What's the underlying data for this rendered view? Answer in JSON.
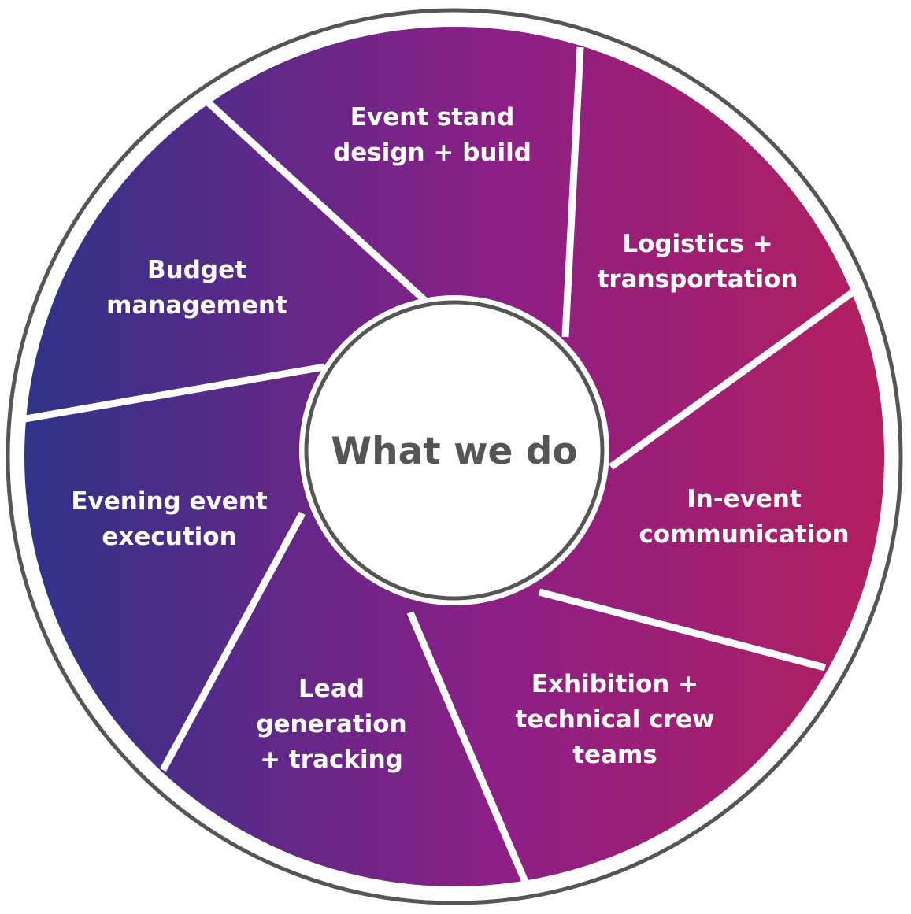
{
  "diagram": {
    "center_label": "What we do",
    "colors": {
      "gradient_left": "#2e3389",
      "gradient_mid": "#8c1f86",
      "gradient_right": "#b21f5f",
      "outline": "#555555",
      "divider": "#ffffff",
      "center_fill": "#ffffff",
      "center_text": "#555555",
      "label_text": "#ffffff"
    },
    "segments": [
      {
        "id": "event-stand",
        "lines": [
          "Event stand",
          "design + build"
        ]
      },
      {
        "id": "logistics",
        "lines": [
          "Logistics +",
          "transportation"
        ]
      },
      {
        "id": "in-event",
        "lines": [
          "In-event",
          "communication"
        ]
      },
      {
        "id": "exhibition",
        "lines": [
          "Exhibition +",
          "technical crew",
          "teams"
        ]
      },
      {
        "id": "lead-generation",
        "lines": [
          "Lead",
          "generation",
          "+ tracking"
        ]
      },
      {
        "id": "evening-event",
        "lines": [
          "Evening event",
          "execution"
        ]
      },
      {
        "id": "budget",
        "lines": [
          "Budget",
          "management"
        ]
      }
    ]
  }
}
